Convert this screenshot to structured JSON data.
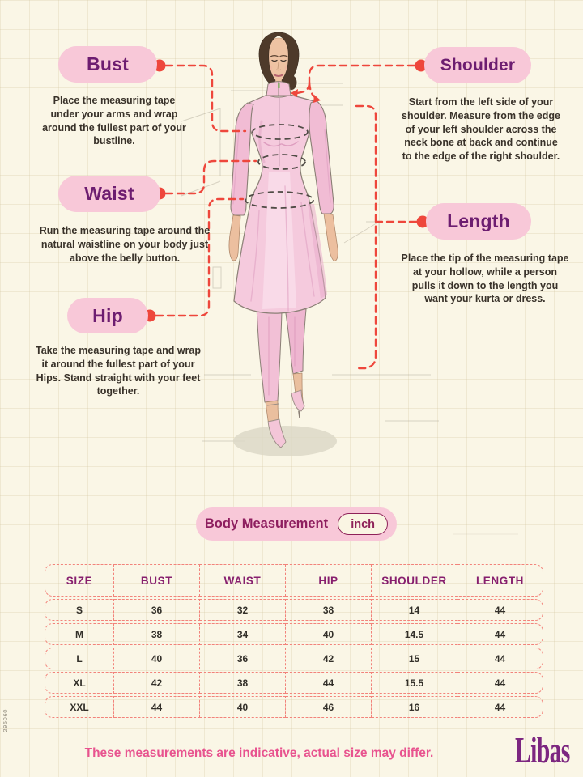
{
  "page": {
    "side_code": "295060",
    "footer_note": "These measurements are indicative, actual size may differ.",
    "brand": "Libas"
  },
  "colors": {
    "background_cream": "#faf6e6",
    "pill_pink": "#f8c8d8",
    "title_purple": "#6d1d70",
    "table_header_magenta": "#871f6e",
    "dashed_red": "#ee473c",
    "table_dash_salmon": "#f2837b",
    "footer_pink": "#e8538f",
    "logo_purple": "#7c2680",
    "kurta_pink": "#f5cadd"
  },
  "callouts": [
    {
      "id": "bust",
      "title": "Bust",
      "description": "Place the measuring tape under your arms and wrap around the fullest part of your bustline."
    },
    {
      "id": "waist",
      "title": "Waist",
      "description": "Run the measuring tape around the natural waistline on your body just above the belly button."
    },
    {
      "id": "hip",
      "title": "Hip",
      "description": "Take the measuring tape and wrap it around the fullest part of your Hips. Stand straight with your feet together."
    },
    {
      "id": "shoulder",
      "title": "Shoulder",
      "description": "Start from the left side of your shoulder. Measure from the edge of your left shoulder across the neck bone at back and continue to the edge of the right shoulder."
    },
    {
      "id": "length",
      "title": "Length",
      "description": "Place the tip of the measuring tape at your hollow, while a person pulls it down to the length you want your kurta or dress."
    }
  ],
  "measurement_bar": {
    "label": "Body Measurement",
    "unit": "inch"
  },
  "size_table": {
    "columns": [
      "SIZE",
      "BUST",
      "WAIST",
      "HIP",
      "SHOULDER",
      "LENGTH"
    ],
    "rows": [
      [
        "S",
        "36",
        "32",
        "38",
        "14",
        "44"
      ],
      [
        "M",
        "38",
        "34",
        "40",
        "14.5",
        "44"
      ],
      [
        "L",
        "40",
        "36",
        "42",
        "15",
        "44"
      ],
      [
        "XL",
        "42",
        "38",
        "44",
        "15.5",
        "44"
      ],
      [
        "XXL",
        "44",
        "40",
        "46",
        "16",
        "44"
      ]
    ]
  }
}
